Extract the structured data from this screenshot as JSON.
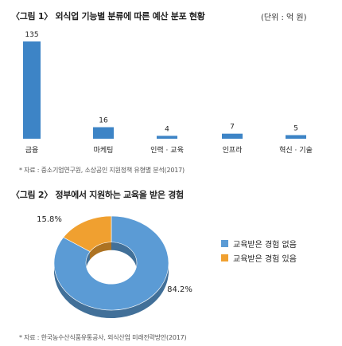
{
  "chart_data": [
    {
      "type": "bar",
      "title": "〈그림 1〉 외식업 기능별 분류에 따른 예산 분포 현황",
      "unit": "(단위 : 억 원)",
      "categories": [
        "금융",
        "마케팅",
        "인력 · 교육",
        "인프라",
        "혁신 · 기술"
      ],
      "values": [
        135,
        16,
        4,
        7,
        5
      ],
      "value_labels": [
        "135",
        "16",
        "4",
        "7",
        "5"
      ],
      "ylim": [
        0,
        135
      ],
      "grid": false,
      "colors": {
        "bar": "#3d84c6"
      },
      "source": "* 자료 : 중소기업연구원, 소상공인 지원정책 유형별 분석(2017)"
    },
    {
      "type": "pie",
      "style": "donut",
      "title": "〈그림 2〉 정부에서 지원하는 교육을 받은 경험",
      "labels": [
        "교육받은 경험 없음",
        "교육받은 경험 있음"
      ],
      "values": [
        84.2,
        15.8
      ],
      "value_labels": [
        "84.2%",
        "15.8%"
      ],
      "colors": [
        "#5b9bd5",
        "#f0a030"
      ],
      "legend_position": "right",
      "source": "* 자료 : 한국농수산식품유통공사, 외식산업 미래전략방안(2017)"
    }
  ]
}
